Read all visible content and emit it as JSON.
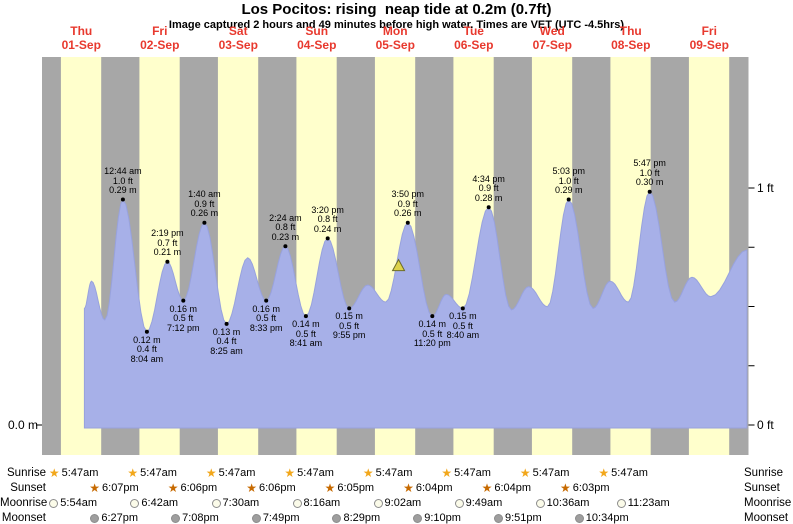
{
  "title": "Los Pocitos: rising  neap tide at 0.2m (0.7ft)",
  "subtitle": "Image captured 2 hours and 49 minutes before high water. Times are VET (UTC -4.5hrs)",
  "axes": {
    "left_m": "0.0 m",
    "right_ft_top": "1 ft",
    "right_ft_bottom": "0 ft"
  },
  "days": [
    {
      "dow": "Thu",
      "date": "01-Sep"
    },
    {
      "dow": "Fri",
      "date": "02-Sep"
    },
    {
      "dow": "Sat",
      "date": "03-Sep"
    },
    {
      "dow": "Sun",
      "date": "04-Sep"
    },
    {
      "dow": "Mon",
      "date": "05-Sep"
    },
    {
      "dow": "Tue",
      "date": "06-Sep"
    },
    {
      "dow": "Wed",
      "date": "07-Sep"
    },
    {
      "dow": "Thu",
      "date": "08-Sep"
    },
    {
      "dow": "Fri",
      "date": "09-Sep"
    }
  ],
  "colors": {
    "night": "#a7a7a7",
    "day": "#ffffcc",
    "water": "#a7b0e8",
    "water_edge": "#98a2dd",
    "day_label_red": "#e8392e",
    "marker": "#ddd24a",
    "marker_edge": "#6b6b2a",
    "sunrise_star": "#f2a71b",
    "sunset_star": "#c76a00",
    "moon_light": "#fbfbe9",
    "moon_dark": "#9e9e9e",
    "moon_edge": "#8c8c8c"
  },
  "chart_data": {
    "type": "area",
    "title": "Los Pocitos: rising  neap tide at 0.2m (0.7ft)",
    "x_axis": "days (Thu 01-Sep to Fri 09-Sep), d = day fraction from midnight Thu 01-Sep",
    "y_axis": "tide height in meters (right axis labeled in feet: 0 ft and 1 ft)",
    "ft_ticks": [
      0,
      0.25,
      0.5,
      0.75,
      1
    ],
    "curve_points": [
      {
        "d": 0.54,
        "m": 0.15
      },
      {
        "d": 0.63,
        "m": 0.185
      },
      {
        "d": 0.8,
        "m": 0.135
      },
      {
        "d": 1.031,
        "m": 0.29
      },
      {
        "d": 1.336,
        "m": 0.12
      },
      {
        "d": 1.597,
        "m": 0.21
      },
      {
        "d": 1.8,
        "m": 0.16
      },
      {
        "d": 2.069,
        "m": 0.26
      },
      {
        "d": 2.351,
        "m": 0.13
      },
      {
        "d": 2.62,
        "m": 0.215
      },
      {
        "d": 2.856,
        "m": 0.16
      },
      {
        "d": 3.1,
        "m": 0.23
      },
      {
        "d": 3.362,
        "m": 0.14
      },
      {
        "d": 3.639,
        "m": 0.24
      },
      {
        "d": 3.913,
        "m": 0.15
      },
      {
        "d": 4.15,
        "m": 0.18
      },
      {
        "d": 4.38,
        "m": 0.158
      },
      {
        "d": 4.66,
        "m": 0.26
      },
      {
        "d": 4.972,
        "m": 0.14
      },
      {
        "d": 5.15,
        "m": 0.168
      },
      {
        "d": 5.361,
        "m": 0.15
      },
      {
        "d": 5.69,
        "m": 0.28
      },
      {
        "d": 5.98,
        "m": 0.148
      },
      {
        "d": 6.2,
        "m": 0.178
      },
      {
        "d": 6.44,
        "m": 0.152
      },
      {
        "d": 6.71,
        "m": 0.29
      },
      {
        "d": 7.02,
        "m": 0.15
      },
      {
        "d": 7.24,
        "m": 0.185
      },
      {
        "d": 7.47,
        "m": 0.158
      },
      {
        "d": 7.741,
        "m": 0.3
      },
      {
        "d": 8.06,
        "m": 0.158
      },
      {
        "d": 8.28,
        "m": 0.19
      },
      {
        "d": 8.52,
        "m": 0.165
      },
      {
        "d": 8.98,
        "m": 0.225
      }
    ],
    "tide_events": [
      {
        "kind": "high",
        "d": 1.031,
        "m": 0.29,
        "lines": [
          "12:44 am",
          "1.0 ft",
          "0.29 m"
        ]
      },
      {
        "kind": "high",
        "d": 1.597,
        "m": 0.21,
        "lines": [
          "2:19 pm",
          "0.7 ft",
          "0.21 m"
        ]
      },
      {
        "kind": "high",
        "d": 2.069,
        "m": 0.26,
        "lines": [
          "1:40 am",
          "0.9 ft",
          "0.26 m"
        ]
      },
      {
        "kind": "high",
        "d": 3.1,
        "m": 0.23,
        "lines": [
          "2:24 am",
          "0.8 ft",
          "0.23 m"
        ]
      },
      {
        "kind": "high",
        "d": 3.639,
        "m": 0.24,
        "lines": [
          "3:20 pm",
          "0.8 ft",
          "0.24 m"
        ]
      },
      {
        "kind": "high",
        "d": 4.66,
        "m": 0.26,
        "lines": [
          "3:50 pm",
          "0.9 ft",
          "0.26 m"
        ]
      },
      {
        "kind": "high",
        "d": 5.69,
        "m": 0.28,
        "lines": [
          "4:34 pm",
          "0.9 ft",
          "0.28 m"
        ]
      },
      {
        "kind": "high",
        "d": 6.71,
        "m": 0.29,
        "lines": [
          "5:03 pm",
          "1.0 ft",
          "0.29 m"
        ]
      },
      {
        "kind": "high",
        "d": 7.741,
        "m": 0.3,
        "lines": [
          "5:47 pm",
          "1.0 ft",
          "0.30 m"
        ]
      },
      {
        "kind": "low",
        "d": 1.336,
        "m": 0.12,
        "lines": [
          "0.12 m",
          "0.4 ft",
          "8:04 am"
        ]
      },
      {
        "kind": "low",
        "d": 1.8,
        "m": 0.16,
        "lines": [
          "0.16 m",
          "0.5 ft",
          "7:12 pm"
        ]
      },
      {
        "kind": "low",
        "d": 2.351,
        "m": 0.13,
        "lines": [
          "0.13 m",
          "0.4 ft",
          "8:25 am"
        ]
      },
      {
        "kind": "low",
        "d": 2.856,
        "m": 0.16,
        "lines": [
          "0.16 m",
          "0.5 ft",
          "8:33 pm"
        ]
      },
      {
        "kind": "low",
        "d": 3.362,
        "m": 0.14,
        "lines": [
          "0.14 m",
          "0.5 ft",
          "8:41 am"
        ]
      },
      {
        "kind": "low",
        "d": 3.913,
        "m": 0.15,
        "lines": [
          "0.15 m",
          "0.5 ft",
          "9:55 pm"
        ]
      },
      {
        "kind": "low",
        "d": 4.972,
        "m": 0.14,
        "lines": [
          "0.14 m",
          "0.5 ft",
          "11:20 pm"
        ]
      },
      {
        "kind": "low",
        "d": 5.361,
        "m": 0.15,
        "lines": [
          "0.15 m",
          "0.5 ft",
          "8:40 am"
        ]
      }
    ],
    "current_time_marker": {
      "d": 4.542,
      "m": 0.205
    }
  },
  "almanac": {
    "rows": [
      {
        "label": "Sunrise",
        "icon": "sunrise-star-icon",
        "entries": [
          {
            "day": 0,
            "time": "5:47am"
          },
          {
            "day": 1,
            "time": "5:47am"
          },
          {
            "day": 2,
            "time": "5:47am"
          },
          {
            "day": 3,
            "time": "5:47am"
          },
          {
            "day": 4,
            "time": "5:47am"
          },
          {
            "day": 5,
            "time": "5:47am"
          },
          {
            "day": 6,
            "time": "5:47am"
          },
          {
            "day": 7,
            "time": "5:47am"
          }
        ]
      },
      {
        "label": "Sunset",
        "icon": "sunset-star-icon",
        "entries": [
          {
            "day": 0,
            "time": "6:07pm"
          },
          {
            "day": 1,
            "time": "6:06pm"
          },
          {
            "day": 2,
            "time": "6:06pm"
          },
          {
            "day": 3,
            "time": "6:05pm"
          },
          {
            "day": 4,
            "time": "6:04pm"
          },
          {
            "day": 5,
            "time": "6:04pm"
          },
          {
            "day": 6,
            "time": "6:03pm"
          }
        ]
      },
      {
        "label": "Moonrise",
        "icon": "moonrise-circle-icon",
        "entries": [
          {
            "day": 0,
            "time": "5:54am"
          },
          {
            "day": 1,
            "time": "6:42am"
          },
          {
            "day": 2,
            "time": "7:30am"
          },
          {
            "day": 3,
            "time": "8:16am"
          },
          {
            "day": 4,
            "time": "9:02am"
          },
          {
            "day": 5,
            "time": "9:49am"
          },
          {
            "day": 6,
            "time": "10:36am"
          },
          {
            "day": 7,
            "time": "11:23am"
          }
        ]
      },
      {
        "label": "Moonset",
        "icon": "moonset-circle-icon",
        "entries": [
          {
            "day": 0,
            "time": "6:27pm"
          },
          {
            "day": 1,
            "time": "7:08pm"
          },
          {
            "day": 2,
            "time": "7:49pm"
          },
          {
            "day": 3,
            "time": "8:29pm"
          },
          {
            "day": 4,
            "time": "9:10pm"
          },
          {
            "day": 5,
            "time": "9:51pm"
          },
          {
            "day": 6,
            "time": "10:34pm"
          }
        ]
      }
    ]
  }
}
